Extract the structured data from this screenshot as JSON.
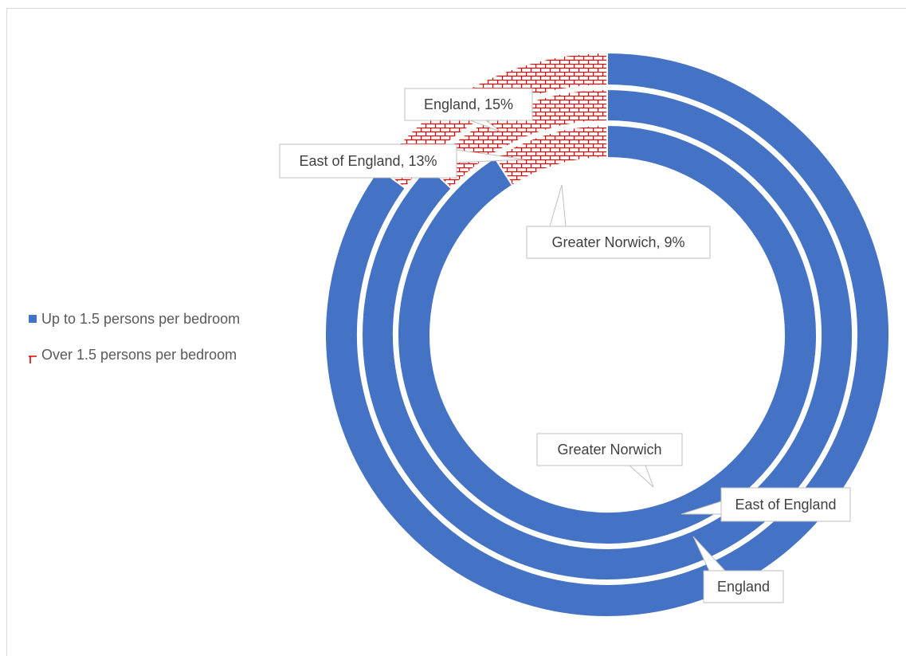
{
  "chart_data": {
    "type": "doughnut",
    "rings_inner_to_outer": [
      "Greater Norwich",
      "East of England",
      "England"
    ],
    "categories": [
      "Up to 1.5 persons per bedroom",
      "Over 1.5 persons per bedroom"
    ],
    "series": [
      {
        "name": "Greater Norwich",
        "values": [
          91,
          9
        ]
      },
      {
        "name": "East of England",
        "values": [
          87,
          13
        ]
      },
      {
        "name": "England",
        "values": [
          85,
          15
        ]
      }
    ],
    "data_labels": {
      "over": [
        "Greater Norwich, 9%",
        "East of England, 13%",
        "England, 15%"
      ],
      "series": [
        "Greater Norwich",
        "East of England",
        "England"
      ]
    },
    "legend": {
      "position": "left",
      "items": [
        {
          "label": "Up to 1.5 persons per bedroom",
          "color": "#4472C4",
          "pattern": "solid"
        },
        {
          "label": "Over 1.5 persons per bedroom",
          "color": "#E00000",
          "pattern": "brick"
        }
      ]
    },
    "colors": {
      "up": "#4472C4",
      "over": "#E00000",
      "background": "#FFFFFF"
    }
  }
}
